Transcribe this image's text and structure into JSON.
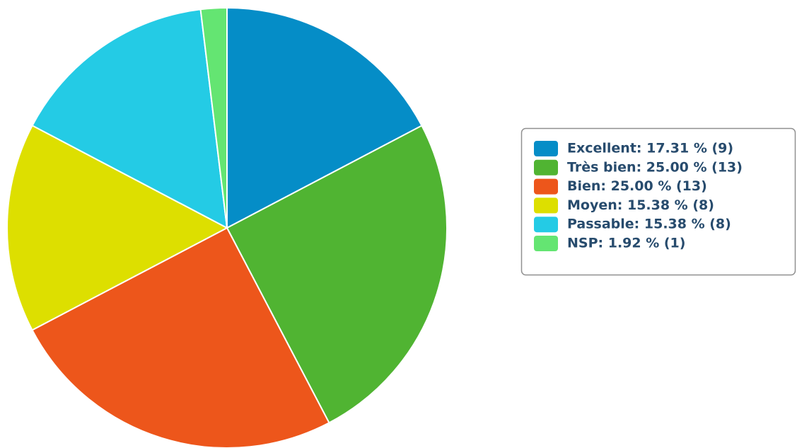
{
  "chart_data": {
    "type": "pie",
    "categories": [
      "Excellent",
      "Très bien",
      "Bien",
      "Moyen",
      "Passable",
      "NSP"
    ],
    "values": [
      17.31,
      25.0,
      25.0,
      15.38,
      15.38,
      1.92
    ],
    "value_labels": [
      "Excellent: 17.31 % (9)",
      "Très bien: 25.00 % (13)",
      "Bien: 25.00 % (13)",
      "Moyen: 15.38 % (8)",
      "Passable: 15.38 % (8)",
      "NSP: 1.92 % (1)"
    ],
    "colors": [
      "#058dc7",
      "#50b432",
      "#ed561b",
      "#dddf00",
      "#24cbe5",
      "#64e572"
    ],
    "legend": "right"
  }
}
